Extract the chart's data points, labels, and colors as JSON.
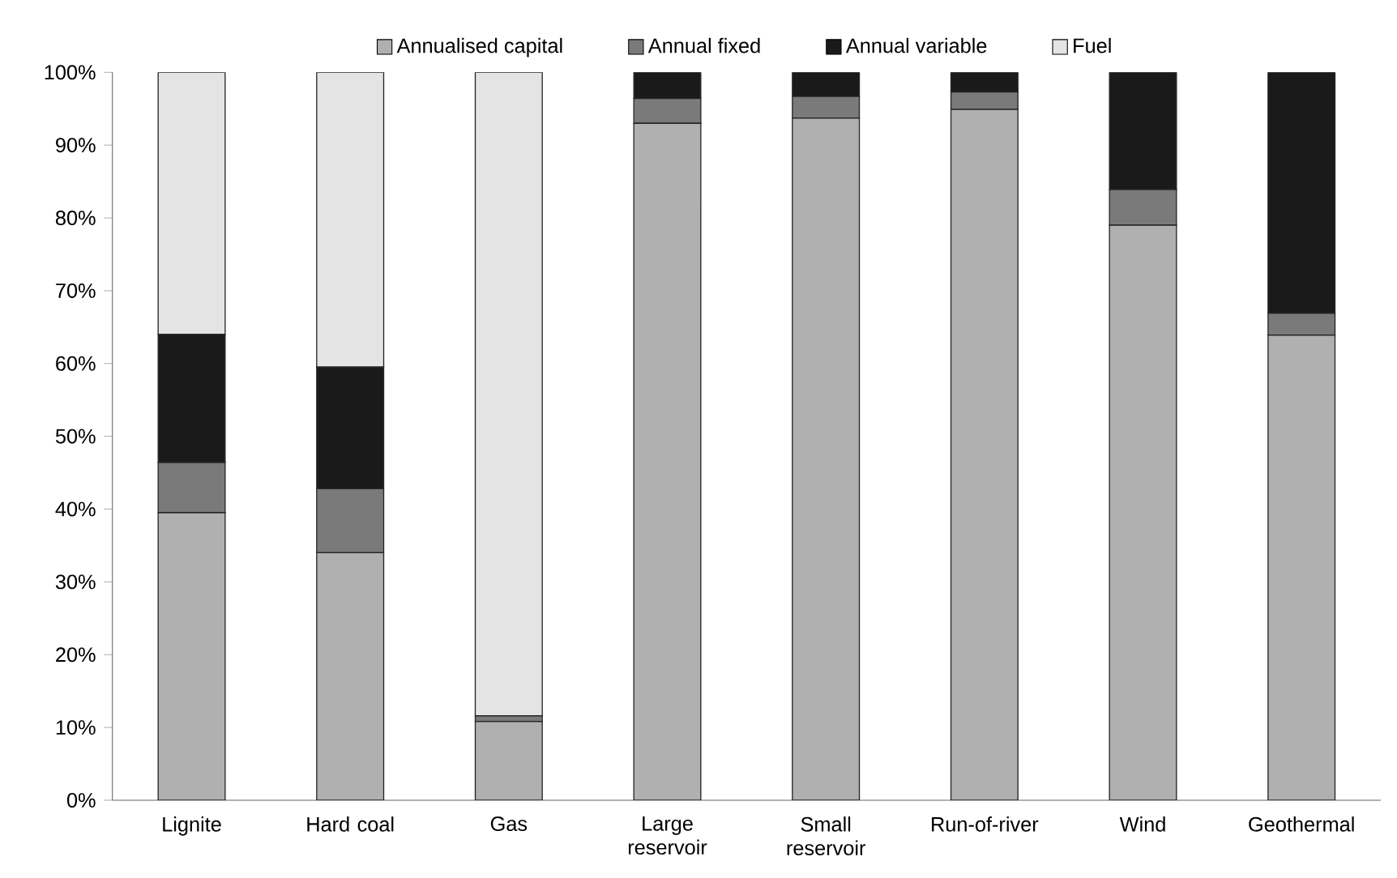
{
  "chart_data": {
    "type": "bar",
    "stacked": true,
    "legend": "top",
    "categories": [
      "Lignite",
      "Hard coal",
      "Gas",
      "Large reservoir",
      "Small reservoir",
      "Run-of-river",
      "Wind",
      "Geothermal"
    ],
    "series": [
      {
        "name": "Annualised capital",
        "color": "#b0b0b0",
        "values": [
          39.5,
          34.0,
          10.8,
          93.0,
          93.7,
          94.9,
          79.0,
          63.9
        ]
      },
      {
        "name": "Annual fixed",
        "color": "#7a7a7a",
        "values": [
          6.9,
          8.8,
          0.8,
          3.4,
          3.0,
          2.4,
          4.9,
          3.0
        ]
      },
      {
        "name": "Annual variable",
        "color": "#1a1a1a",
        "values": [
          17.6,
          16.7,
          0,
          3.6,
          3.3,
          2.7,
          16.1,
          33.1
        ]
      },
      {
        "name": "Fuel",
        "color": "#e4e4e4",
        "values": [
          36.0,
          40.5,
          88.4,
          0,
          0,
          0,
          0,
          0
        ]
      }
    ],
    "ylim": [
      0,
      100
    ],
    "yticks": [
      {
        "value": 0,
        "label": "0%"
      },
      {
        "value": 10,
        "label": "10%"
      },
      {
        "value": 20,
        "label": "20%"
      },
      {
        "value": 30,
        "label": "30%"
      },
      {
        "value": 40,
        "label": "40%"
      },
      {
        "value": 50,
        "label": "50%"
      },
      {
        "value": 60,
        "label": "60%"
      },
      {
        "value": 70,
        "label": "70%"
      },
      {
        "value": 80,
        "label": "80%"
      },
      {
        "value": 90,
        "label": "90%"
      },
      {
        "value": 100,
        "label": "100%"
      }
    ]
  }
}
